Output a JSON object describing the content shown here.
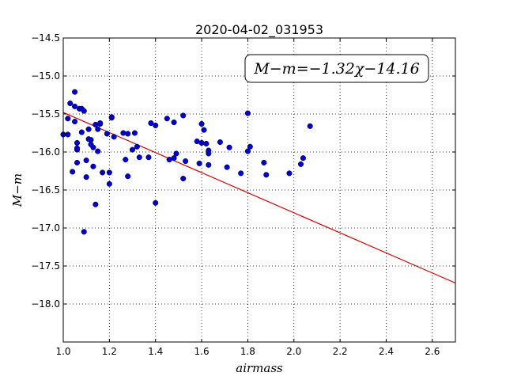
{
  "chart_data": {
    "type": "scatter",
    "title": "2020-04-02_031953",
    "xlabel": "airmass",
    "ylabel": "M−m",
    "annotation": "M−m=−1.32χ−14.16",
    "xlim": [
      1.0,
      2.7
    ],
    "ylim": [
      -18.5,
      -14.5
    ],
    "y_inverted": true,
    "grid": true,
    "x_ticks": [
      "1.0",
      "1.2",
      "1.4",
      "1.6",
      "1.8",
      "2.0",
      "2.2",
      "2.4",
      "2.6"
    ],
    "y_ticks": [
      "−14.5",
      "−15.0",
      "−15.5",
      "−16.0",
      "−16.5",
      "−17.0",
      "−17.5",
      "−18.0"
    ],
    "fit": {
      "slope": -1.32,
      "intercept": -14.16
    },
    "colors": {
      "points": "#0000cc",
      "fit_line": "#dd0000"
    },
    "points": {
      "x": [
        1.0,
        1.02,
        1.02,
        1.03,
        1.04,
        1.05,
        1.05,
        1.05,
        1.06,
        1.06,
        1.06,
        1.06,
        1.07,
        1.08,
        1.08,
        1.09,
        1.09,
        1.1,
        1.1,
        1.11,
        1.11,
        1.12,
        1.12,
        1.13,
        1.13,
        1.14,
        1.14,
        1.15,
        1.15,
        1.16,
        1.16,
        1.17,
        1.19,
        1.2,
        1.2,
        1.21,
        1.21,
        1.22,
        1.26,
        1.27,
        1.28,
        1.28,
        1.3,
        1.31,
        1.32,
        1.33,
        1.37,
        1.38,
        1.4,
        1.4,
        1.45,
        1.46,
        1.48,
        1.48,
        1.49,
        1.52,
        1.52,
        1.53,
        1.58,
        1.59,
        1.6,
        1.6,
        1.61,
        1.62,
        1.63,
        1.63,
        1.63,
        1.68,
        1.71,
        1.72,
        1.77,
        1.8,
        1.8,
        1.81,
        1.87,
        1.88,
        1.98,
        2.03,
        2.04,
        2.07
      ],
      "y": [
        -15.77,
        -15.56,
        -15.77,
        -15.36,
        -16.26,
        -15.6,
        -15.21,
        -15.4,
        -15.97,
        -15.88,
        -16.14,
        -15.95,
        -15.43,
        -15.43,
        -15.74,
        -17.05,
        -15.46,
        -16.11,
        -16.33,
        -15.7,
        -15.83,
        -15.9,
        -15.84,
        -15.94,
        -16.19,
        -15.64,
        -16.69,
        -15.99,
        -15.7,
        -15.63,
        -15.62,
        -16.27,
        -15.76,
        -16.27,
        -16.42,
        -15.54,
        -15.55,
        -15.8,
        -15.75,
        -16.1,
        -15.76,
        -16.32,
        -15.97,
        -15.75,
        -15.93,
        -16.07,
        -16.07,
        -15.62,
        -16.67,
        -15.65,
        -15.56,
        -16.1,
        -16.08,
        -15.61,
        -16.02,
        -16.35,
        -15.52,
        -16.12,
        -15.86,
        -16.15,
        -15.88,
        -15.63,
        -15.71,
        -15.89,
        -16.02,
        -15.98,
        -16.17,
        -15.87,
        -16.2,
        -15.94,
        -16.28,
        -15.99,
        -15.49,
        -15.93,
        -16.14,
        -16.3,
        -16.28,
        -16.16,
        -16.08,
        -15.66
      ]
    }
  }
}
